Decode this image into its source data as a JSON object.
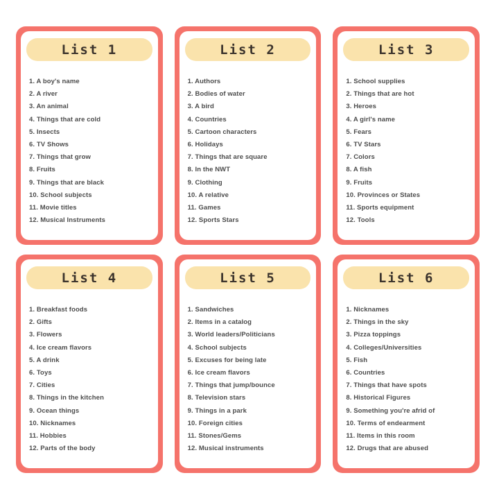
{
  "colors": {
    "card_frame": "#f5736b",
    "header_pill": "#fae3ac",
    "title_text": "#3b332c",
    "item_text": "#4b4b4b",
    "card_background": "#ffffff",
    "page_background": "#ffffff"
  },
  "cards": [
    {
      "title": "List 1",
      "items": [
        "1. A boy's name",
        "2. A river",
        "3. An animal",
        "4. Things that are cold",
        "5. Insects",
        "6. TV Shows",
        "7. Things that grow",
        "8. Fruits",
        "9. Things that are black",
        "10. School subjects",
        "11. Movie titles",
        "12. Musical Instruments"
      ]
    },
    {
      "title": "List 2",
      "items": [
        "1. Authors",
        "2. Bodies of water",
        "3. A bird",
        "4. Countries",
        "5. Cartoon characters",
        "6. Holidays",
        "7. Things that are square",
        "8. In the NWT",
        "9. Clothing",
        "10. A relative",
        "11. Games",
        "12. Sports Stars"
      ]
    },
    {
      "title": "List 3",
      "items": [
        "1. School supplies",
        "2. Things that are hot",
        "3. Heroes",
        "4. A girl's name",
        "5. Fears",
        "6. TV Stars",
        "7. Colors",
        "8. A fish",
        "9. Fruits",
        "10. Provinces or States",
        "11. Sports equipment",
        "12. Tools"
      ]
    },
    {
      "title": "List 4",
      "items": [
        "1. Breakfast foods",
        "2. Gifts",
        "3. Flowers",
        "4. Ice cream flavors",
        "5. A drink",
        "6. Toys",
        "7. Cities",
        "8. Things in the kitchen",
        "9. Ocean things",
        "10. Nicknames",
        "11. Hobbies",
        "12. Parts of the body"
      ]
    },
    {
      "title": "List 5",
      "items": [
        "1. Sandwiches",
        "2. Items in a catalog",
        "3. World leaders/Politicians",
        "4. School subjects",
        "5. Excuses for being late",
        "6. Ice cream flavors",
        "7. Things that jump/bounce",
        "8. Television stars",
        "9. Things in a park",
        "10. Foreign cities",
        "11. Stones/Gems",
        "12. Musical instruments"
      ]
    },
    {
      "title": "List 6",
      "items": [
        "1. Nicknames",
        "2. Things in the sky",
        "3. Pizza toppings",
        "4. Colleges/Universities",
        "5. Fish",
        "6. Countries",
        "7. Things that have spots",
        "8. Historical Figures",
        "9. Something you're afrid of",
        "10. Terms of endearment",
        "11. Items in this room",
        "12. Drugs that are abused"
      ]
    }
  ]
}
